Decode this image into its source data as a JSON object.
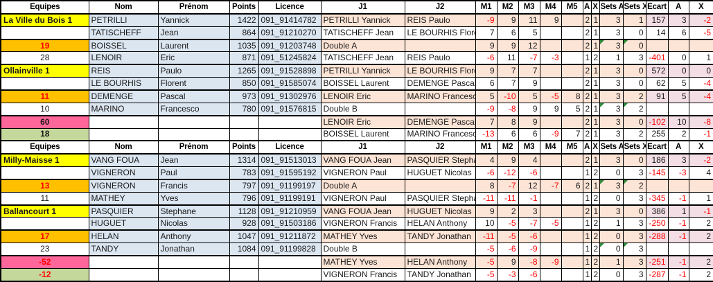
{
  "app": {
    "type": "spreadsheet-score-sheet"
  },
  "colors": {
    "team_yellow": "#FFFF00",
    "handicap_orange": "#FFC000",
    "total_pink": "#FF6699",
    "total_green": "#C5D89B",
    "player_blue": "#DCE6F1",
    "row_peach": "#FCE4D6",
    "result_pink": "#F2DEE4",
    "negative_red": "#FF0000",
    "flag_green": "#2E8B3A",
    "grid": "#000000"
  },
  "columns": [
    "Equipes",
    "Nom",
    "Prénom",
    "Points",
    "Licence",
    "J1",
    "J2",
    "M1",
    "M2",
    "M3",
    "M4",
    "M5",
    "A",
    "X",
    "Sets A",
    "Sets X",
    "Ecart",
    "A",
    "X"
  ],
  "tables": [
    {
      "rows": [
        {
          "eq": "La Ville du Bois 1",
          "eq_style": "team",
          "nom": "PETRILLI",
          "prenom": "Yannick",
          "points": "1422",
          "licence": "091_91414782",
          "j1": "PETRILLI Yannick",
          "j2": "REIS Paulo",
          "m": [
            "-9",
            "9",
            "11",
            "9",
            ""
          ],
          "ax": [
            "2",
            "1"
          ],
          "sets": [
            "3",
            "1"
          ],
          "flags": [
            false,
            false
          ],
          "res": [
            "157",
            "3",
            "-2"
          ]
        },
        {
          "eq": "",
          "eq_style": "blank",
          "nom": "TATISCHEFF",
          "prenom": "Jean",
          "points": "864",
          "licence": "091_91210270",
          "j1": "TATISCHEFF Jean",
          "j2": "LE BOURHIS Florent",
          "m": [
            "7",
            "6",
            "5",
            "",
            ""
          ],
          "ax": [
            "2",
            "1"
          ],
          "sets": [
            "3",
            "0"
          ],
          "flags": [
            false,
            false
          ],
          "res": [
            "14",
            "6",
            "-5"
          ]
        },
        {
          "eq": "19",
          "eq_style": "orange",
          "nom": "BOISSEL",
          "prenom": "Laurent",
          "points": "1035",
          "licence": "091_91203748",
          "j1": "Double A",
          "j2": "",
          "m": [
            "9",
            "9",
            "12",
            "",
            ""
          ],
          "ax": [
            "2",
            "1"
          ],
          "sets": [
            "3",
            "0"
          ],
          "flags": [
            true,
            true
          ],
          "res": [
            "",
            "",
            ""
          ]
        },
        {
          "eq": "28",
          "eq_style": "plain",
          "nom": "LENOIR",
          "prenom": "Eric",
          "points": "871",
          "licence": "091_51245824",
          "j1": "TATISCHEFF Jean",
          "j2": "REIS Paulo",
          "m": [
            "-6",
            "11",
            "-7",
            "-3",
            ""
          ],
          "ax": [
            "1",
            "2"
          ],
          "sets": [
            "1",
            "3"
          ],
          "flags": [
            false,
            false
          ],
          "res": [
            "-401",
            "0",
            "1"
          ]
        },
        {
          "eq": "Ollainville 1",
          "eq_style": "team",
          "nom": "REIS",
          "prenom": "Paulo",
          "points": "1265",
          "licence": "091_91528898",
          "j1": "PETRILLI Yannick",
          "j2": "LE BOURHIS Florent",
          "m": [
            "9",
            "7",
            "7",
            "",
            ""
          ],
          "ax": [
            "2",
            "1"
          ],
          "sets": [
            "3",
            "0"
          ],
          "flags": [
            false,
            false
          ],
          "res": [
            "572",
            "0",
            "0"
          ]
        },
        {
          "eq": "",
          "eq_style": "blank",
          "nom": "LE BOURHIS",
          "prenom": "Florent",
          "points": "850",
          "licence": "091_91585074",
          "j1": "BOISSEL Laurent",
          "j2": "DEMENGE Pascal",
          "m": [
            "6",
            "7",
            "9",
            "",
            ""
          ],
          "ax": [
            "2",
            "1"
          ],
          "sets": [
            "3",
            "0"
          ],
          "flags": [
            false,
            false
          ],
          "res": [
            "62",
            "5",
            "-4"
          ]
        },
        {
          "eq": "11",
          "eq_style": "orange",
          "nom": "DEMENGE",
          "prenom": "Pascal",
          "points": "973",
          "licence": "091_91302976",
          "j1": "LENOIR Eric",
          "j2": "MARINO Francesco",
          "m": [
            "5",
            "-10",
            "5",
            "-5",
            "8"
          ],
          "ax": [
            "2",
            "1"
          ],
          "sets": [
            "3",
            "2"
          ],
          "flags": [
            false,
            false
          ],
          "res": [
            "91",
            "5",
            "-4"
          ]
        },
        {
          "eq": "10",
          "eq_style": "plain",
          "nom": "MARINO",
          "prenom": "Francesco",
          "points": "780",
          "licence": "091_91576815",
          "j1": "Double B",
          "j2": "",
          "m": [
            "-9",
            "-8",
            "9",
            "9",
            "5"
          ],
          "ax": [
            "2",
            "1"
          ],
          "sets": [
            "3",
            "2"
          ],
          "flags": [
            true,
            true
          ],
          "res": [
            "",
            "",
            ""
          ]
        },
        {
          "eq": "60",
          "eq_style": "pink",
          "nom": "",
          "prenom": "",
          "points": "",
          "licence": "",
          "j1": "LENOIR Eric",
          "j2": "DEMENGE Pascal",
          "m": [
            "7",
            "8",
            "9",
            "",
            ""
          ],
          "ax": [
            "2",
            "1"
          ],
          "sets": [
            "3",
            "0"
          ],
          "flags": [
            false,
            false
          ],
          "res": [
            "-102",
            "10",
            "-8"
          ]
        },
        {
          "eq": "18",
          "eq_style": "green",
          "nom": "",
          "prenom": "",
          "points": "",
          "licence": "",
          "j1": "BOISSEL Laurent",
          "j2": "MARINO Francesco",
          "m": [
            "-13",
            "6",
            "6",
            "-9",
            "7"
          ],
          "ax": [
            "2",
            "1"
          ],
          "sets": [
            "3",
            "2"
          ],
          "flags": [
            false,
            false
          ],
          "res": [
            "255",
            "2",
            "-1"
          ]
        }
      ]
    },
    {
      "rows": [
        {
          "eq": "Milly-Maisse 1",
          "eq_style": "team",
          "nom": "VANG FOUA",
          "prenom": "Jean",
          "points": "1314",
          "licence": "091_91513013",
          "j1": "VANG FOUA Jean",
          "j2": "PASQUIER Stephane",
          "m": [
            "4",
            "9",
            "4",
            "",
            ""
          ],
          "ax": [
            "2",
            "1"
          ],
          "sets": [
            "3",
            "0"
          ],
          "flags": [
            false,
            false
          ],
          "res": [
            "186",
            "3",
            "-2"
          ]
        },
        {
          "eq": "",
          "eq_style": "blank",
          "nom": "VIGNERON",
          "prenom": "Paul",
          "points": "783",
          "licence": "091_91595192",
          "j1": "VIGNERON Paul",
          "j2": "HUGUET Nicolas",
          "m": [
            "-6",
            "-12",
            "-6",
            "",
            ""
          ],
          "ax": [
            "1",
            "2"
          ],
          "sets": [
            "0",
            "3"
          ],
          "flags": [
            false,
            false
          ],
          "res": [
            "-145",
            "-3",
            "4"
          ]
        },
        {
          "eq": "13",
          "eq_style": "orange",
          "nom": "VIGNERON",
          "prenom": "Francis",
          "points": "797",
          "licence": "091_91199197",
          "j1": "Double A",
          "j2": "",
          "m": [
            "8",
            "-7",
            "12",
            "-7",
            "6"
          ],
          "ax": [
            "2",
            "1"
          ],
          "sets": [
            "3",
            "2"
          ],
          "flags": [
            true,
            true
          ],
          "res": [
            "",
            "",
            ""
          ]
        },
        {
          "eq": "11",
          "eq_style": "plain",
          "nom": "MATHEY",
          "prenom": "Yves",
          "points": "796",
          "licence": "091_91199191",
          "j1": "VIGNERON Paul",
          "j2": "PASQUIER Stephane",
          "m": [
            "-11",
            "-11",
            "-1",
            "",
            ""
          ],
          "ax": [
            "1",
            "2"
          ],
          "sets": [
            "0",
            "3"
          ],
          "flags": [
            false,
            false
          ],
          "res": [
            "-345",
            "-1",
            "1"
          ]
        },
        {
          "eq": "Ballancourt 1",
          "eq_style": "team",
          "nom": "PASQUIER",
          "prenom": "Stephane",
          "points": "1128",
          "licence": "091_91210959",
          "j1": "VANG FOUA Jean",
          "j2": "HUGUET Nicolas",
          "m": [
            "9",
            "2",
            "3",
            "",
            ""
          ],
          "ax": [
            "2",
            "1"
          ],
          "sets": [
            "3",
            "0"
          ],
          "flags": [
            false,
            false
          ],
          "res": [
            "386",
            "1",
            "-1"
          ]
        },
        {
          "eq": "",
          "eq_style": "blank",
          "nom": "HUGUET",
          "prenom": "Nicolas",
          "points": "928",
          "licence": "091_91503186",
          "j1": "VIGNERON Francis",
          "j2": "HELAN Anthony",
          "m": [
            "10",
            "-5",
            "-7",
            "-5",
            ""
          ],
          "ax": [
            "1",
            "2"
          ],
          "sets": [
            "1",
            "3"
          ],
          "flags": [
            false,
            false
          ],
          "res": [
            "-250",
            "-1",
            "2"
          ]
        },
        {
          "eq": "17",
          "eq_style": "orange",
          "nom": "HELAN",
          "prenom": "Anthony",
          "points": "1047",
          "licence": "091_91211872",
          "j1": "MATHEY Yves",
          "j2": "TANDY Jonathan",
          "m": [
            "-11",
            "-5",
            "-6",
            "",
            ""
          ],
          "ax": [
            "1",
            "2"
          ],
          "sets": [
            "0",
            "3"
          ],
          "flags": [
            false,
            false
          ],
          "res": [
            "-288",
            "-1",
            "2"
          ]
        },
        {
          "eq": "23",
          "eq_style": "plain",
          "nom": "TANDY",
          "prenom": "Jonathan",
          "points": "1084",
          "licence": "091_91199828",
          "j1": "Double B",
          "j2": "",
          "m": [
            "-5",
            "-6",
            "-9",
            "",
            ""
          ],
          "ax": [
            "1",
            "2"
          ],
          "sets": [
            "0",
            "3"
          ],
          "flags": [
            true,
            true
          ],
          "res": [
            "",
            "",
            ""
          ]
        },
        {
          "eq": "-52",
          "eq_style": "pink",
          "nom": "",
          "prenom": "",
          "points": "",
          "licence": "",
          "j1": "MATHEY Yves",
          "j2": "HELAN Anthony",
          "m": [
            "-5",
            "9",
            "-8",
            "-9",
            ""
          ],
          "ax": [
            "1",
            "2"
          ],
          "sets": [
            "1",
            "3"
          ],
          "flags": [
            false,
            false
          ],
          "res": [
            "-251",
            "-1",
            "2"
          ]
        },
        {
          "eq": "-12",
          "eq_style": "green",
          "nom": "",
          "prenom": "",
          "points": "",
          "licence": "",
          "j1": "VIGNERON Francis",
          "j2": "TANDY Jonathan",
          "m": [
            "-5",
            "-3",
            "-6",
            "",
            ""
          ],
          "ax": [
            "1",
            "2"
          ],
          "sets": [
            "0",
            "3"
          ],
          "flags": [
            false,
            false
          ],
          "res": [
            "-287",
            "-1",
            "2"
          ]
        }
      ]
    }
  ]
}
